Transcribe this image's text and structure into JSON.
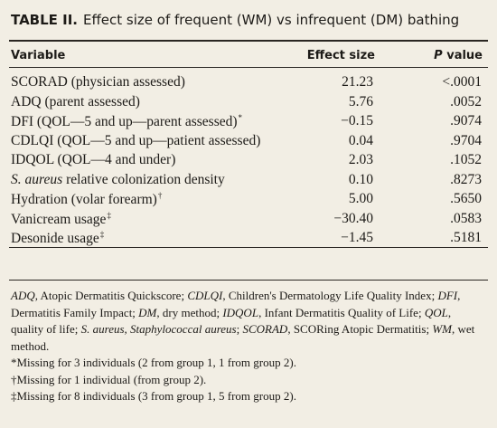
{
  "title": {
    "label": "TABLE II.",
    "text": "Effect size of frequent (WM) vs infrequent (DM) bathing"
  },
  "header": {
    "variable": "Variable",
    "effect": "Effect size",
    "p_italic": "P",
    "p_rest": "value"
  },
  "rows": [
    {
      "label": "SCORAD (physician assessed)",
      "effect": "21.23",
      "p": "<.0001"
    },
    {
      "label": "ADQ (parent assessed)",
      "effect": "5.76",
      "p": ".0052"
    },
    {
      "label": "DFI (QOL—5 and up—parent assessed)",
      "note": "*",
      "effect": "−0.15",
      "p": ".9074"
    },
    {
      "label": "CDLQI (QOL—5 and up—patient assessed)",
      "effect": "0.04",
      "p": ".9704"
    },
    {
      "label": "IDQOL (QOL—4 and under)",
      "effect": "2.03",
      "p": ".1052"
    },
    {
      "italic": "S. aureus",
      "label": "relative colonization density",
      "effect": "0.10",
      "p": ".8273"
    },
    {
      "label": "Hydration (volar forearm)",
      "note": "†",
      "effect": "5.00",
      "p": ".5650"
    },
    {
      "label": "Vanicream usage",
      "note": "‡",
      "effect": "−30.40",
      "p": ".0583"
    },
    {
      "label": "Desonide usage",
      "note": "‡",
      "effect": "−1.45",
      "p": ".5181"
    }
  ],
  "abbreviations": [
    {
      "abbr": "ADQ",
      "definition": ", Atopic Dermatitis Quickscore; "
    },
    {
      "abbr": "CDLQI",
      "definition": ", Children's Dermatology Life Quality Index; "
    },
    {
      "abbr": "DFI",
      "definition": ", Dermatitis Family Impact; "
    },
    {
      "abbr": "DM",
      "definition": ", dry method; "
    },
    {
      "abbr": "IDQOL",
      "definition": ", Infant Dermatitis Quality of Life; "
    },
    {
      "abbr": "QOL",
      "definition": ", quality of life; "
    },
    {
      "abbr": "S. aureus, Staphylococcal aureus",
      "definition": "; "
    },
    {
      "abbr": "SCORAD",
      "definition": ", SCORing Atopic Dermatitis; "
    },
    {
      "abbr": "WM",
      "definition": ", wet method."
    }
  ],
  "notes": [
    "*Missing for 3 individuals (2 from group 1, 1 from group 2).",
    "†Missing for 1 individual (from group 2).",
    "‡Missing for 8 individuals (3 from group 1, 5 from group 2)."
  ]
}
